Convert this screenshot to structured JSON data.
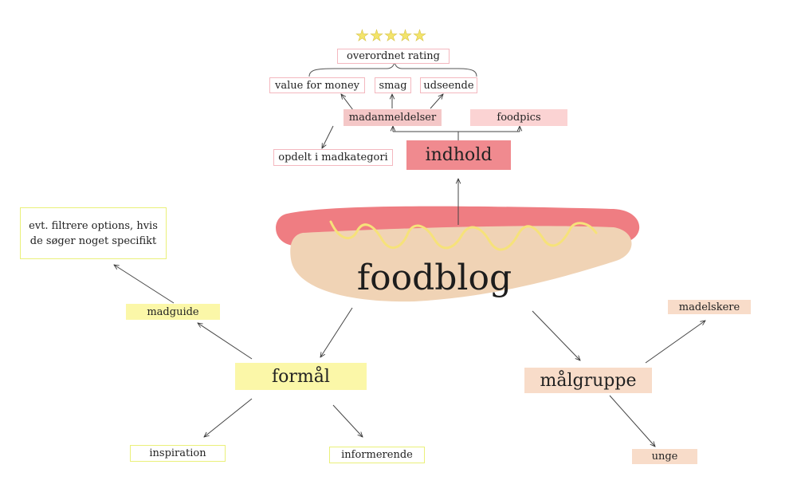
{
  "title": "foodblog",
  "stars": "★★★★★",
  "nodes": {
    "overordnet_rating": "overordnet rating",
    "value_for_money": "value for money",
    "smag": "smag",
    "udseende": "udseende",
    "madanmeldelser": "madanmeldelser",
    "foodpics": "foodpics",
    "opdelt_i_madkategori": "opdelt i madkategori",
    "indhold": "indhold",
    "filtrere": "evt. filtrere options, hvis de søger noget specifikt",
    "madguide": "madguide",
    "formaal": "formål",
    "inspiration": "inspiration",
    "informerende": "informerende",
    "maalgruppe": "målgruppe",
    "madelskere": "madelskere",
    "unge": "unge"
  },
  "colors": {
    "pink_outline": "#f4b8bf",
    "pink_fill": "#f08a8f",
    "yellow_fill": "#fbf7a8",
    "peach_fill": "#f8dcc9",
    "bun": "#f0d3b5",
    "sausage": "#ef7d82",
    "mustard": "#f6e27a"
  }
}
